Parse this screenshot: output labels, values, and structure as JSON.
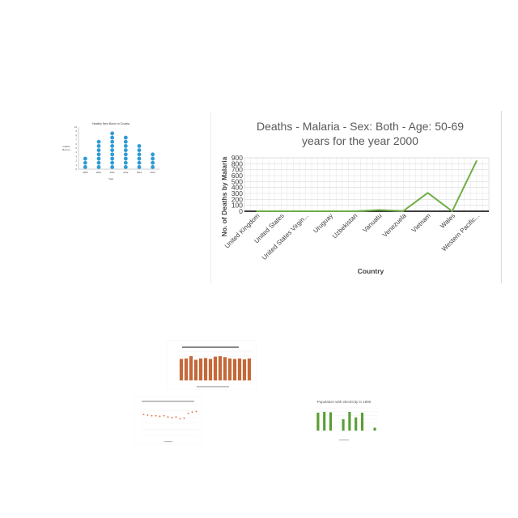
{
  "colors": {
    "line": "#70ad47",
    "dot": "#2e9bd6",
    "bar": "#c5693a",
    "bar_small": "#5a9e34",
    "scatter": "#e06a3a",
    "axis_text": "#595959",
    "grid": "#d9d9d9"
  },
  "main_chart": {
    "title_line1": "Deaths - Malaria - Sex: Both - Age: 50-69",
    "title_line2": "years for the year 2000",
    "chart_data": {
      "type": "line",
      "title": "Deaths - Malaria - Sex: Both - Age: 50-69 years for the year 2000",
      "xlabel": "Country",
      "ylabel": "No. of Deaths by Malaria",
      "categories": [
        "United Kingdom",
        "United States",
        "United States Virgin...",
        "Uruguay",
        "Uzbekistan",
        "Vanuatu",
        "Venezuela",
        "Vietnam",
        "Wales",
        "Western Pacific..."
      ],
      "values": [
        0,
        0,
        0,
        0,
        0,
        20,
        5,
        310,
        0,
        850
      ],
      "yticks": [
        900,
        800,
        700,
        600,
        500,
        400,
        300,
        200,
        100,
        0
      ],
      "ylim": [
        0,
        900
      ],
      "grid": true
    }
  },
  "dot_chart": {
    "title": "Healthy New Borns in Croatia",
    "ylabel_line1": "Infants",
    "ylabel_line2": "Born in",
    "xlabel": "Year",
    "chart_data": {
      "type": "scatter",
      "title": "Healthy New Borns in Croatia",
      "xlabel": "Year",
      "categories": [
        "2009",
        "2010",
        "2011",
        "2012",
        "2013",
        "2014"
      ],
      "values": [
        3,
        7,
        9,
        8,
        6,
        4
      ],
      "ylim": [
        0,
        10
      ],
      "yticks": [
        10,
        9,
        8,
        7,
        6,
        5,
        4,
        3,
        2,
        1,
        0
      ]
    }
  },
  "bar_chart": {
    "chart_data": {
      "type": "bar",
      "values": [
        480,
        490,
        540,
        460,
        490,
        500,
        480,
        530,
        540,
        520,
        490,
        480,
        490,
        470,
        490
      ],
      "ylim": [
        0,
        650
      ]
    }
  },
  "scatter_chart": {
    "chart_data": {
      "type": "scatter",
      "values": [
        3.4,
        3.3,
        3.2,
        3.2,
        3.1,
        3.2,
        3.0,
        2.9,
        3.0,
        2.7,
        2.8,
        3.6,
        3.8,
        3.9
      ],
      "ylim": [
        0,
        5
      ]
    }
  },
  "electricity_chart": {
    "title": "Population with electricity in 1990",
    "chart_data": {
      "type": "bar",
      "title": "Population with electricity in 1990",
      "values": [
        95,
        99,
        97,
        0,
        60,
        99,
        70,
        95,
        0,
        15
      ],
      "ylim": [
        0,
        120
      ]
    }
  }
}
